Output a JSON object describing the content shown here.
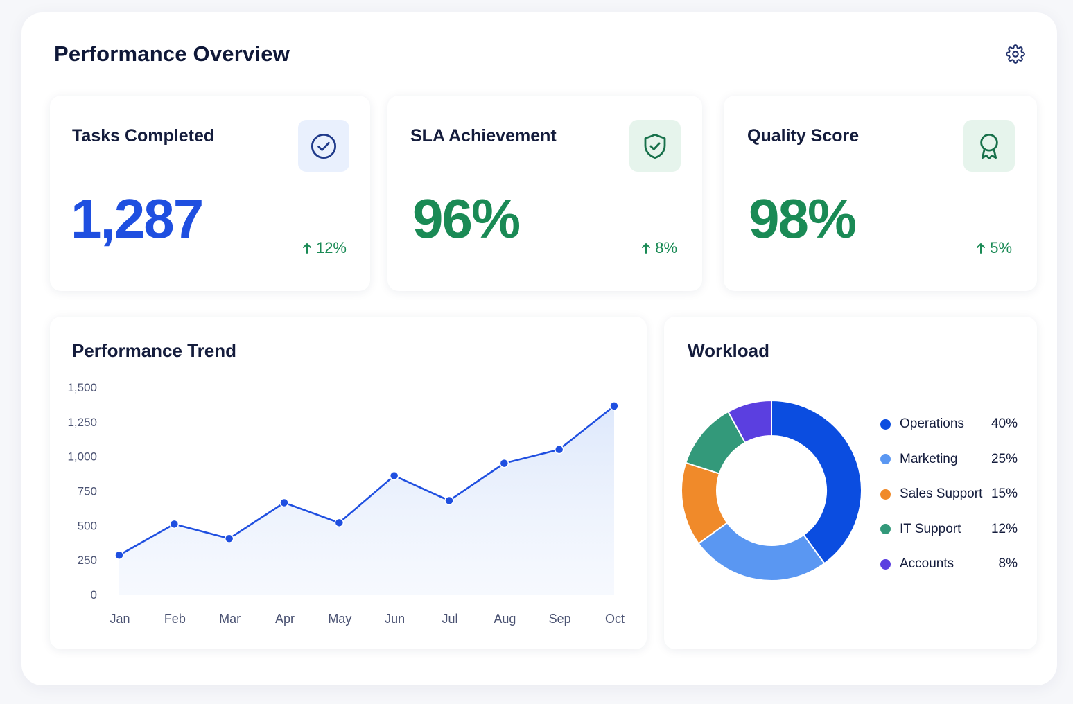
{
  "page": {
    "title": "Performance Overview"
  },
  "icons": {
    "settings": "gear-icon"
  },
  "kpis": [
    {
      "label": "Tasks Completed",
      "value": "1,287",
      "change": "12%",
      "direction": "up",
      "icon": "check-circle-icon",
      "value_color": "#1f4fe0",
      "icon_bg": "#e9f0fd",
      "icon_color": "#1f3a8a"
    },
    {
      "label": "SLA Achievement",
      "value": "96%",
      "change": "8%",
      "direction": "up",
      "icon": "shield-check-icon",
      "value_color": "#1a8a55",
      "icon_bg": "#e6f4ec",
      "icon_color": "#17704a"
    },
    {
      "label": "Quality Score",
      "value": "98%",
      "change": "5%",
      "direction": "up",
      "icon": "award-ribbon-icon",
      "value_color": "#1a8a55",
      "icon_bg": "#e6f4ec",
      "icon_color": "#17704a"
    }
  ],
  "trend": {
    "title": "Performance Trend",
    "chart_data": {
      "type": "area",
      "categories": [
        "Jan",
        "Feb",
        "Mar",
        "Apr",
        "May",
        "Jun",
        "Jul",
        "Aug",
        "Sep",
        "Oct"
      ],
      "series": [
        {
          "values": [
            285,
            510,
            405,
            665,
            520,
            860,
            680,
            950,
            1050,
            1365
          ]
        }
      ],
      "ylim": [
        0,
        1500
      ],
      "yticks": [
        "0",
        "250",
        "500",
        "750",
        "1,000",
        "1,250",
        "1,500"
      ],
      "ytick_values": [
        0,
        250,
        500,
        750,
        1000,
        1250,
        1500
      ],
      "grid": false,
      "color": "#1f4fe0"
    }
  },
  "workload": {
    "title": "Workload",
    "chart_data": {
      "type": "pie",
      "donut": true,
      "slices": [
        {
          "label": "Operations",
          "value": 40,
          "display": "40%",
          "color": "#0b4de0"
        },
        {
          "label": "Marketing",
          "value": 25,
          "display": "25%",
          "color": "#5a97f2"
        },
        {
          "label": "Sales Support",
          "value": 15,
          "display": "15%",
          "color": "#f08a2a"
        },
        {
          "label": "IT Support",
          "value": 12,
          "display": "12%",
          "color": "#33997a"
        },
        {
          "label": "Accounts",
          "value": 8,
          "display": "8%",
          "color": "#5b3fe0"
        }
      ],
      "legend_position": "right"
    }
  }
}
